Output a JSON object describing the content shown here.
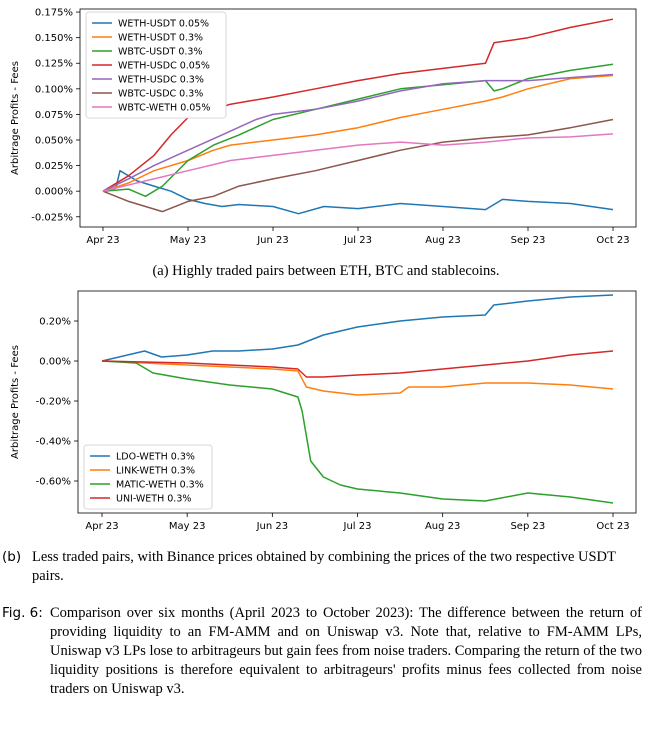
{
  "chart_data": [
    {
      "type": "line",
      "ylabel": "Arbitrage Profits - Fees",
      "xlabel": "",
      "x_ticks": [
        "Apr 23",
        "May 23",
        "Jun 23",
        "Jul 23",
        "Aug 23",
        "Sep 23",
        "Oct 23"
      ],
      "y_ticks": [
        "-0.025%",
        "0.000%",
        "0.025%",
        "0.050%",
        "0.075%",
        "0.100%",
        "0.125%",
        "0.150%",
        "0.175%"
      ],
      "ylim": [
        -0.035,
        0.178
      ],
      "legend_position": "upper-left",
      "grid": false,
      "series": [
        {
          "name": "WETH-USDT 0.05%",
          "color": "#1f77b4",
          "x": [
            0,
            0.15,
            0.2,
            0.4,
            0.6,
            0.8,
            1.0,
            1.2,
            1.4,
            1.6,
            2.0,
            2.3,
            2.6,
            3.0,
            3.5,
            4.0,
            4.5,
            4.7,
            5.0,
            5.5,
            6.0
          ],
          "values": [
            0.0,
            0.003,
            0.02,
            0.01,
            0.005,
            0.0,
            -0.008,
            -0.012,
            -0.015,
            -0.013,
            -0.015,
            -0.022,
            -0.015,
            -0.017,
            -0.012,
            -0.015,
            -0.018,
            -0.008,
            -0.01,
            -0.012,
            -0.018
          ]
        },
        {
          "name": "WETH-USDT 0.3%",
          "color": "#ff7f0e",
          "x": [
            0,
            0.3,
            0.6,
            1.0,
            1.3,
            1.5,
            2.0,
            2.5,
            3.0,
            3.5,
            4.0,
            4.5,
            4.7,
            5.0,
            5.5,
            6.0
          ],
          "values": [
            0.0,
            0.008,
            0.02,
            0.03,
            0.04,
            0.045,
            0.05,
            0.055,
            0.062,
            0.072,
            0.08,
            0.088,
            0.092,
            0.1,
            0.11,
            0.113
          ]
        },
        {
          "name": "WBTC-USDT 0.3%",
          "color": "#2ca02c",
          "x": [
            0,
            0.3,
            0.5,
            0.7,
            1.0,
            1.3,
            1.6,
            2.0,
            2.5,
            3.0,
            3.5,
            4.0,
            4.5,
            4.6,
            4.7,
            5.0,
            5.5,
            6.0
          ],
          "values": [
            0.0,
            0.002,
            -0.005,
            0.005,
            0.03,
            0.045,
            0.055,
            0.07,
            0.08,
            0.09,
            0.1,
            0.104,
            0.108,
            0.098,
            0.1,
            0.11,
            0.118,
            0.124
          ]
        },
        {
          "name": "WETH-USDC 0.05%",
          "color": "#d62728",
          "x": [
            0,
            0.3,
            0.6,
            0.8,
            1.0,
            1.5,
            2.0,
            2.5,
            3.0,
            3.5,
            4.0,
            4.5,
            4.6,
            5.0,
            5.5,
            6.0
          ],
          "values": [
            0.0,
            0.015,
            0.035,
            0.055,
            0.072,
            0.085,
            0.092,
            0.1,
            0.108,
            0.115,
            0.12,
            0.125,
            0.145,
            0.15,
            0.16,
            0.168
          ]
        },
        {
          "name": "WETH-USDC 0.3%",
          "color": "#9467bd",
          "x": [
            0,
            0.3,
            0.6,
            1.0,
            1.4,
            1.8,
            2.0,
            2.5,
            3.0,
            3.5,
            4.0,
            4.5,
            5.0,
            5.5,
            6.0
          ],
          "values": [
            0.0,
            0.012,
            0.025,
            0.04,
            0.055,
            0.07,
            0.075,
            0.08,
            0.088,
            0.098,
            0.105,
            0.108,
            0.108,
            0.111,
            0.114
          ]
        },
        {
          "name": "WBTC-USDC 0.3%",
          "color": "#8c564b",
          "x": [
            0,
            0.3,
            0.5,
            0.7,
            1.0,
            1.3,
            1.6,
            2.0,
            2.5,
            3.0,
            3.5,
            4.0,
            4.5,
            5.0,
            5.5,
            6.0
          ],
          "values": [
            0.0,
            -0.01,
            -0.015,
            -0.02,
            -0.01,
            -0.005,
            0.005,
            0.012,
            0.02,
            0.03,
            0.04,
            0.048,
            0.052,
            0.055,
            0.062,
            0.07
          ]
        },
        {
          "name": "WBTC-WETH 0.05%",
          "color": "#e377c2",
          "x": [
            0,
            0.5,
            1.0,
            1.5,
            2.0,
            2.5,
            3.0,
            3.5,
            4.0,
            4.5,
            5.0,
            5.5,
            6.0
          ],
          "values": [
            0.0,
            0.01,
            0.02,
            0.03,
            0.035,
            0.04,
            0.045,
            0.048,
            0.045,
            0.048,
            0.052,
            0.053,
            0.056
          ]
        }
      ]
    },
    {
      "type": "line",
      "ylabel": "Arbitrage Profits - Fees",
      "xlabel": "",
      "x_ticks": [
        "Apr 23",
        "May 23",
        "Jun 23",
        "Jul 23",
        "Aug 23",
        "Sep 23",
        "Oct 23"
      ],
      "y_ticks": [
        "-0.60%",
        "-0.40%",
        "-0.20%",
        "0.00%",
        "0.20%"
      ],
      "ylim": [
        -0.76,
        0.35
      ],
      "legend_position": "lower-left",
      "grid": false,
      "series": [
        {
          "name": "LDO-WETH 0.3%",
          "color": "#1f77b4",
          "x": [
            0,
            0.3,
            0.5,
            0.7,
            1.0,
            1.3,
            1.6,
            2.0,
            2.3,
            2.6,
            3.0,
            3.5,
            4.0,
            4.5,
            4.6,
            5.0,
            5.5,
            6.0
          ],
          "values": [
            0.0,
            0.03,
            0.05,
            0.02,
            0.03,
            0.05,
            0.05,
            0.06,
            0.08,
            0.13,
            0.17,
            0.2,
            0.22,
            0.23,
            0.28,
            0.3,
            0.32,
            0.33
          ]
        },
        {
          "name": "LINK-WETH 0.3%",
          "color": "#ff7f0e",
          "x": [
            0,
            0.5,
            1.0,
            1.5,
            2.0,
            2.3,
            2.4,
            2.6,
            2.8,
            3.0,
            3.5,
            3.6,
            4.0,
            4.5,
            5.0,
            5.5,
            6.0
          ],
          "values": [
            0.0,
            -0.01,
            -0.02,
            -0.03,
            -0.04,
            -0.05,
            -0.13,
            -0.15,
            -0.16,
            -0.17,
            -0.16,
            -0.13,
            -0.13,
            -0.11,
            -0.11,
            -0.12,
            -0.14
          ]
        },
        {
          "name": "MATIC-WETH 0.3%",
          "color": "#2ca02c",
          "x": [
            0,
            0.4,
            0.6,
            1.0,
            1.5,
            2.0,
            2.3,
            2.35,
            2.45,
            2.6,
            2.8,
            3.0,
            3.5,
            4.0,
            4.5,
            5.0,
            5.5,
            6.0
          ],
          "values": [
            0.0,
            -0.01,
            -0.06,
            -0.09,
            -0.12,
            -0.14,
            -0.18,
            -0.25,
            -0.5,
            -0.58,
            -0.62,
            -0.64,
            -0.66,
            -0.69,
            -0.7,
            -0.66,
            -0.68,
            -0.71
          ]
        },
        {
          "name": "UNI-WETH 0.3%",
          "color": "#d62728",
          "x": [
            0,
            0.5,
            1.0,
            1.5,
            2.0,
            2.3,
            2.4,
            2.6,
            3.0,
            3.5,
            4.0,
            4.5,
            5.0,
            5.5,
            6.0
          ],
          "values": [
            0.0,
            -0.005,
            -0.01,
            -0.02,
            -0.03,
            -0.04,
            -0.08,
            -0.08,
            -0.07,
            -0.06,
            -0.04,
            -0.02,
            0.0,
            0.03,
            0.05
          ]
        }
      ]
    }
  ],
  "captions": {
    "a": "(a) Highly traded pairs between ETH, BTC and stablecoins.",
    "b_tag": "(b)",
    "b_text": "Less traded pairs, with Binance prices obtained by combining the prices of the two respective USDT pairs.",
    "fig_tag": "Fig. 6:",
    "fig_text": "Comparison over six months (April 2023 to October 2023): The difference between the return of providing liquidity to an FM-AMM and on Uniswap v3. Note that, relative to FM-AMM LPs, Uniswap v3 LPs lose to arbitrageurs but gain fees from noise traders. Comparing the return of the two liquidity positions is therefore equivalent to arbitrageurs' profits minus fees collected from noise traders on Uniswap v3."
  }
}
